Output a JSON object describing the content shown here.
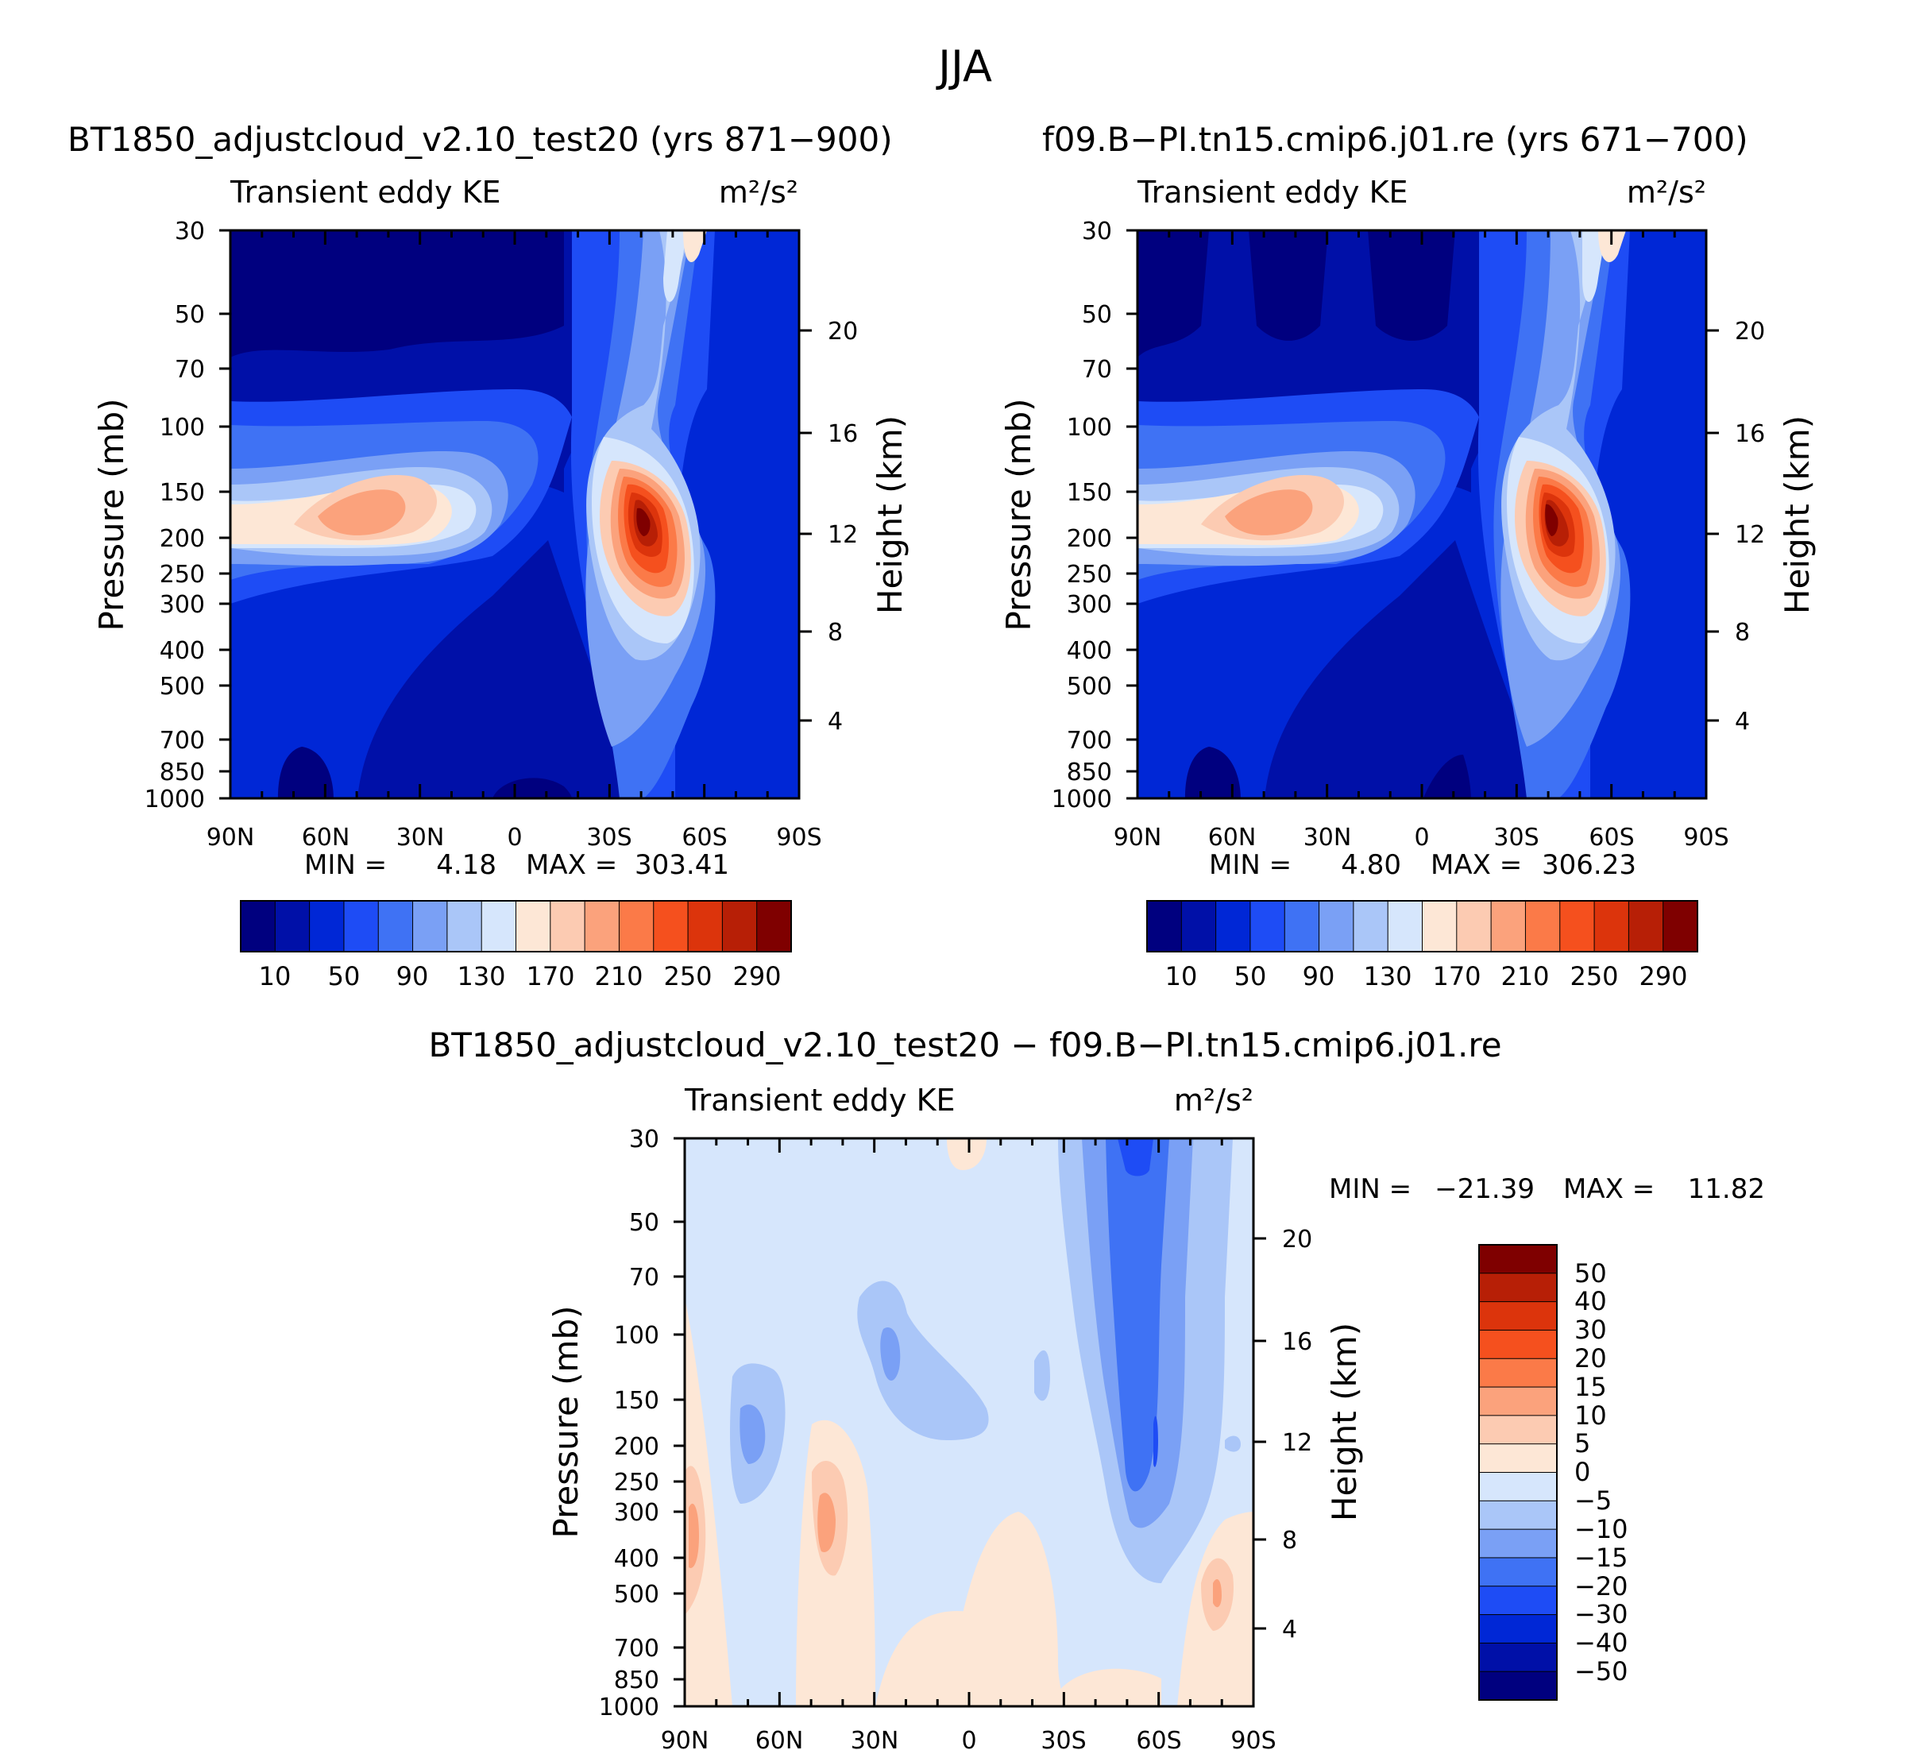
{
  "page": {
    "title": "JJA"
  },
  "chart_data": [
    {
      "type": "heatmap",
      "id": "panel-left",
      "title": "BT1850_adjustcloud_v2.10_test20 (yrs 871−900)",
      "subtitle_left": "Transient eddy KE",
      "units": "m²/s²",
      "ylabel": "Pressure (mb)",
      "ylabel2": "Height (km)",
      "xticks": [
        "90N",
        "60N",
        "30N",
        "0",
        "30S",
        "60S",
        "90S"
      ],
      "yticks": [
        "30",
        "50",
        "70",
        "100",
        "150",
        "200",
        "250",
        "300",
        "400",
        "500",
        "700",
        "850",
        "1000"
      ],
      "yticks2": [
        "20",
        "16",
        "12",
        "8",
        "4"
      ],
      "min_label": "MIN =",
      "min_value": "4.18",
      "max_label": "MAX =",
      "max_value": "303.41",
      "colorbar_labels": [
        "10",
        "50",
        "90",
        "130",
        "170",
        "210",
        "250",
        "290"
      ],
      "colors": [
        "#00007f",
        "#0010a8",
        "#0027d6",
        "#1e4cf5",
        "#3f72f4",
        "#7aa0f5",
        "#aac6f8",
        "#d6e6fc",
        "#fde7d6",
        "#fccbb2",
        "#fba27c",
        "#fb7a48",
        "#f5501e",
        "#dc340c",
        "#b71f06",
        "#7f0000"
      ]
    },
    {
      "type": "heatmap",
      "id": "panel-right",
      "title": "f09.B−PI.tn15.cmip6.j01.re (yrs 671−700)",
      "subtitle_left": "Transient eddy KE",
      "units": "m²/s²",
      "ylabel": "Pressure (mb)",
      "ylabel2": "Height (km)",
      "xticks": [
        "90N",
        "60N",
        "30N",
        "0",
        "30S",
        "60S",
        "90S"
      ],
      "yticks": [
        "30",
        "50",
        "70",
        "100",
        "150",
        "200",
        "250",
        "300",
        "400",
        "500",
        "700",
        "850",
        "1000"
      ],
      "yticks2": [
        "20",
        "16",
        "12",
        "8",
        "4"
      ],
      "min_label": "MIN =",
      "min_value": "4.80",
      "max_label": "MAX =",
      "max_value": "306.23",
      "colorbar_labels": [
        "10",
        "50",
        "90",
        "130",
        "170",
        "210",
        "250",
        "290"
      ],
      "colors": [
        "#00007f",
        "#0010a8",
        "#0027d6",
        "#1e4cf5",
        "#3f72f4",
        "#7aa0f5",
        "#aac6f8",
        "#d6e6fc",
        "#fde7d6",
        "#fccbb2",
        "#fba27c",
        "#fb7a48",
        "#f5501e",
        "#dc340c",
        "#b71f06",
        "#7f0000"
      ]
    },
    {
      "type": "heatmap",
      "id": "panel-diff",
      "title": "BT1850_adjustcloud_v2.10_test20 − f09.B−PI.tn15.cmip6.j01.re",
      "subtitle_left": "Transient eddy KE",
      "units": "m²/s²",
      "ylabel": "Pressure (mb)",
      "ylabel2": "Height (km)",
      "xticks": [
        "90N",
        "60N",
        "30N",
        "0",
        "30S",
        "60S",
        "90S"
      ],
      "yticks": [
        "30",
        "50",
        "70",
        "100",
        "150",
        "200",
        "250",
        "300",
        "400",
        "500",
        "700",
        "850",
        "1000"
      ],
      "yticks2": [
        "20",
        "16",
        "12",
        "8",
        "4"
      ],
      "min_label": "MIN =",
      "min_value": "−21.39",
      "max_label": "MAX =",
      "max_value": "11.82",
      "colorbar_labels": [
        "50",
        "40",
        "30",
        "20",
        "15",
        "10",
        "5",
        "0",
        "−5",
        "−10",
        "−15",
        "−20",
        "−30",
        "−40",
        "−50"
      ],
      "colors": [
        "#7f0000",
        "#b71f06",
        "#dc340c",
        "#f5501e",
        "#fb7a48",
        "#fba27c",
        "#fccbb2",
        "#fde7d6",
        "#d6e6fc",
        "#aac6f8",
        "#7aa0f5",
        "#3f72f4",
        "#1e4cf5",
        "#0027d6",
        "#0010a8",
        "#00007f"
      ]
    }
  ]
}
